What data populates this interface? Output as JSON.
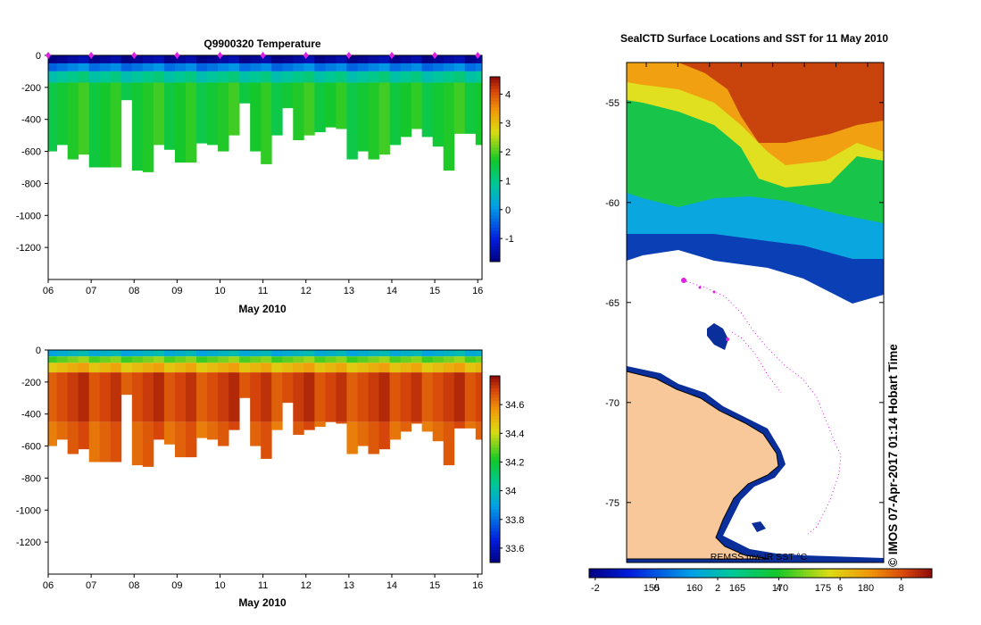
{
  "chart_data": [
    {
      "id": "temperature",
      "type": "heatmap",
      "title": "Q9900320  Temperature",
      "xlabel": "May 2010",
      "x_ticks": [
        "06",
        "07",
        "08",
        "09",
        "10",
        "11",
        "12",
        "13",
        "14",
        "15",
        "16"
      ],
      "xlim": [
        6,
        16.1
      ],
      "y_ticks": [
        "0",
        "-200",
        "-400",
        "-600",
        "-800",
        "-1000",
        "-1200"
      ],
      "ylim": [
        -1400,
        0
      ],
      "colorbar": {
        "ticks": [
          "4",
          "3",
          "2",
          "1",
          "0",
          "-1"
        ],
        "range": [
          -1.8,
          4.6
        ]
      },
      "profile_times": [
        6.0,
        6.2,
        6.45,
        6.7,
        6.95,
        7.2,
        7.45,
        7.7,
        7.95,
        8.2,
        8.45,
        8.7,
        8.95,
        9.2,
        9.45,
        9.7,
        9.95,
        10.2,
        10.45,
        10.7,
        10.95,
        11.2,
        11.45,
        11.7,
        11.95,
        12.2,
        12.45,
        12.7,
        12.95,
        13.2,
        13.45,
        13.7,
        13.95,
        14.2,
        14.45,
        14.7,
        14.95,
        15.2,
        15.45,
        15.7,
        15.95
      ],
      "profile_max_depth": [
        600,
        560,
        650,
        620,
        700,
        700,
        700,
        280,
        720,
        730,
        560,
        590,
        670,
        670,
        550,
        560,
        600,
        500,
        300,
        600,
        680,
        500,
        330,
        530,
        500,
        480,
        450,
        460,
        650,
        600,
        650,
        620,
        560,
        510,
        460,
        510,
        570,
        720,
        490,
        490,
        560
      ],
      "surface_markers": [
        6,
        7,
        8,
        9,
        10,
        11,
        12,
        13,
        14,
        15,
        16
      ],
      "layers": [
        {
          "top": 0,
          "bottom": 50,
          "value": -1.6
        },
        {
          "top": 50,
          "bottom": 100,
          "value": -0.2
        },
        {
          "top": 100,
          "bottom": 170,
          "value": 0.9
        },
        {
          "top": 170,
          "bottom": 800,
          "value": 1.7
        }
      ]
    },
    {
      "id": "salinity",
      "type": "heatmap",
      "title": "",
      "xlabel": "May 2010",
      "x_ticks": [
        "06",
        "07",
        "08",
        "09",
        "10",
        "11",
        "12",
        "13",
        "14",
        "15",
        "16"
      ],
      "xlim": [
        6,
        16.1
      ],
      "y_ticks": [
        "0",
        "-200",
        "-400",
        "-600",
        "-800",
        "-1000",
        "-1200"
      ],
      "ylim": [
        -1400,
        0
      ],
      "colorbar": {
        "ticks": [
          "34.6",
          "34.4",
          "34.2",
          "34",
          "33.8",
          "33.6"
        ],
        "range": [
          33.5,
          34.8
        ]
      },
      "profile_times": [
        6.0,
        6.2,
        6.45,
        6.7,
        6.95,
        7.2,
        7.45,
        7.7,
        7.95,
        8.2,
        8.45,
        8.7,
        8.95,
        9.2,
        9.45,
        9.7,
        9.95,
        10.2,
        10.45,
        10.7,
        10.95,
        11.2,
        11.45,
        11.7,
        11.95,
        12.2,
        12.45,
        12.7,
        12.95,
        13.2,
        13.45,
        13.7,
        13.95,
        14.2,
        14.45,
        14.7,
        14.95,
        15.2,
        15.45,
        15.7,
        15.95
      ],
      "profile_max_depth": [
        600,
        560,
        650,
        620,
        700,
        700,
        700,
        280,
        720,
        730,
        560,
        590,
        670,
        670,
        550,
        560,
        600,
        500,
        300,
        600,
        680,
        500,
        330,
        530,
        500,
        480,
        450,
        460,
        650,
        600,
        650,
        620,
        560,
        510,
        460,
        510,
        570,
        720,
        490,
        490,
        560
      ],
      "layers": [
        {
          "top": 0,
          "bottom": 40,
          "value": 33.95
        },
        {
          "top": 40,
          "bottom": 80,
          "value": 34.3
        },
        {
          "top": 80,
          "bottom": 140,
          "value": 34.5
        },
        {
          "top": 140,
          "bottom": 450,
          "value": 34.7
        },
        {
          "top": 450,
          "bottom": 800,
          "value": 34.65
        }
      ]
    },
    {
      "id": "sst-map",
      "type": "heatmap",
      "title": "SealCTD Surface Locations and SST for 11 May 2010",
      "y_ticks": [
        "-55",
        "-60",
        "-65",
        "-70",
        "-75"
      ],
      "ylim": [
        -78,
        -53
      ],
      "x_ticks_top": 8,
      "colorbar": {
        "range": [
          -2.2,
          9.0
        ],
        "ticks": [
          "-2",
          "0",
          "2",
          "4",
          "6",
          "8"
        ],
        "overlay_text": [
          "155",
          "160",
          "165",
          "170",
          "175",
          "180"
        ]
      },
      "caption": "REMSS mw-IR SST °C",
      "credit": "©  IMOS 07-Apr-2017 01:14 Hobart Time",
      "colors": {
        "land": "#f8c89a",
        "no_data": "#ffffff",
        "track": "#e020e0"
      }
    }
  ]
}
